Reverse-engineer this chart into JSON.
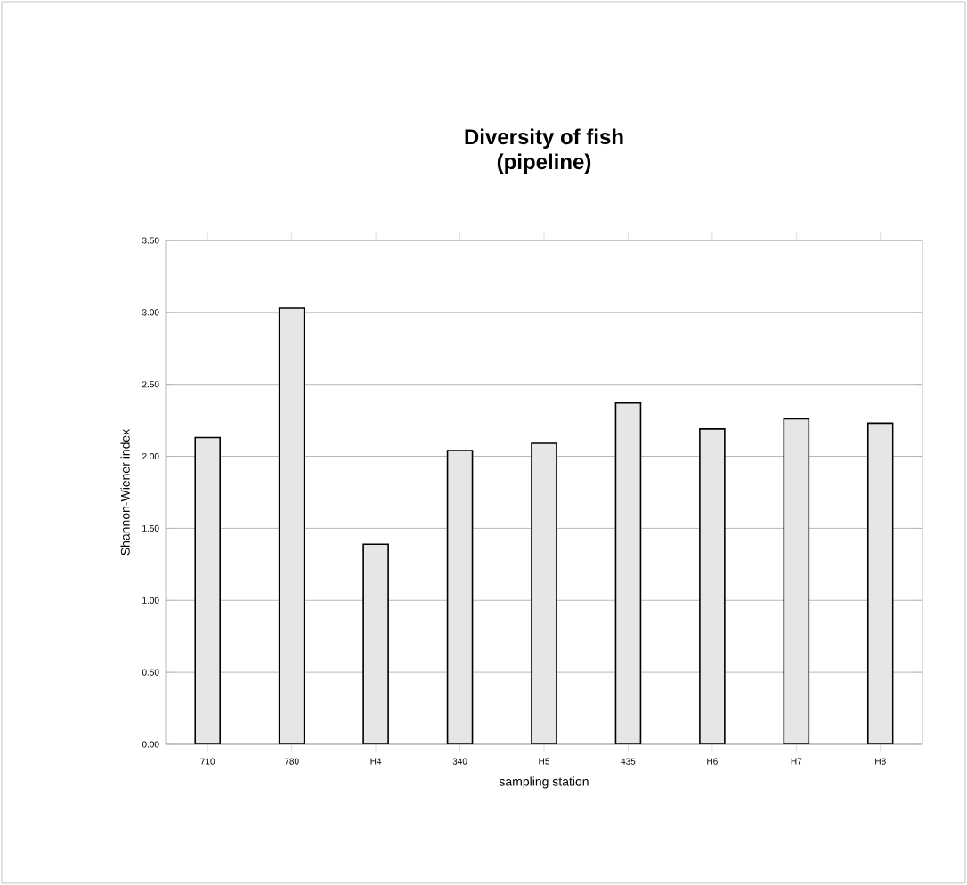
{
  "chart_data": {
    "type": "bar",
    "title": "Diversity of fish\n(pipeline)",
    "xlabel": "sampling station",
    "ylabel": "Shannon-Wiener index",
    "categories": [
      "710",
      "780",
      "H4",
      "340",
      "H5",
      "435",
      "H6",
      "H7",
      "H8"
    ],
    "values": [
      2.13,
      3.03,
      1.39,
      2.04,
      2.09,
      2.37,
      2.19,
      2.26,
      2.23
    ],
    "color": "#e6e6e6",
    "ylim": [
      0,
      3.5
    ],
    "yticks": [
      {
        "value": 0,
        "label": "0.00"
      },
      {
        "value": 0.5,
        "label": "0.50"
      },
      {
        "value": 1,
        "label": "1.00"
      },
      {
        "value": 1.5,
        "label": "1.50"
      },
      {
        "value": 2,
        "label": "2.00"
      },
      {
        "value": 2.5,
        "label": "2.50"
      },
      {
        "value": 3,
        "label": "3.00"
      },
      {
        "value": 3.5,
        "label": "3.50"
      }
    ],
    "grid": "y"
  }
}
